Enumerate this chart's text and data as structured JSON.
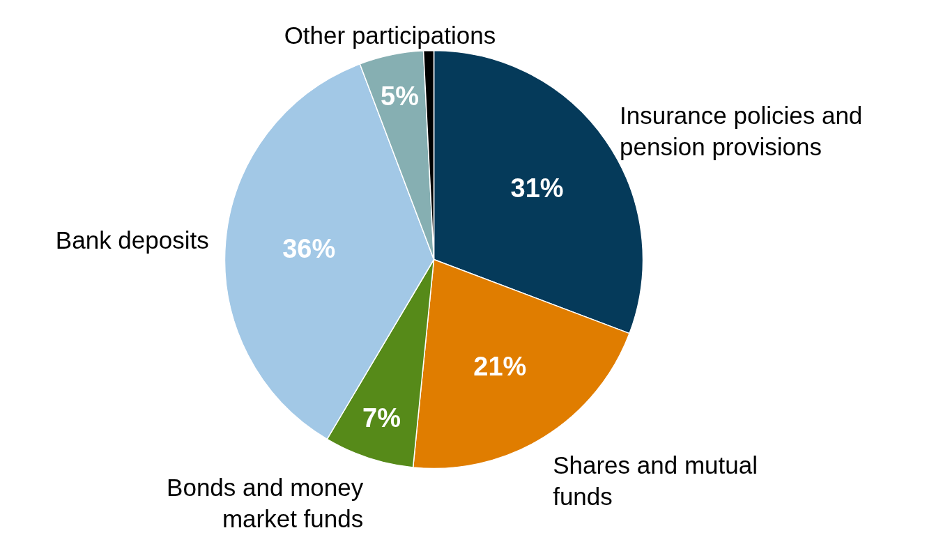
{
  "chart_data": {
    "type": "pie",
    "categories": [
      "Insurance policies and\npension provisions",
      "Shares and mutual\nfunds",
      "Bonds and money\nmarket funds",
      "Bank deposits",
      "Other participations",
      null
    ],
    "values": [
      31,
      21,
      7,
      36,
      5,
      0.8
    ],
    "colors": [
      "#053a5a",
      "#e07d00",
      "#568a19",
      "#a2c8e6",
      "#86afb2",
      "#000000"
    ],
    "value_labels": [
      "31%",
      "21%",
      "7%",
      "36%",
      "5%",
      null
    ]
  }
}
